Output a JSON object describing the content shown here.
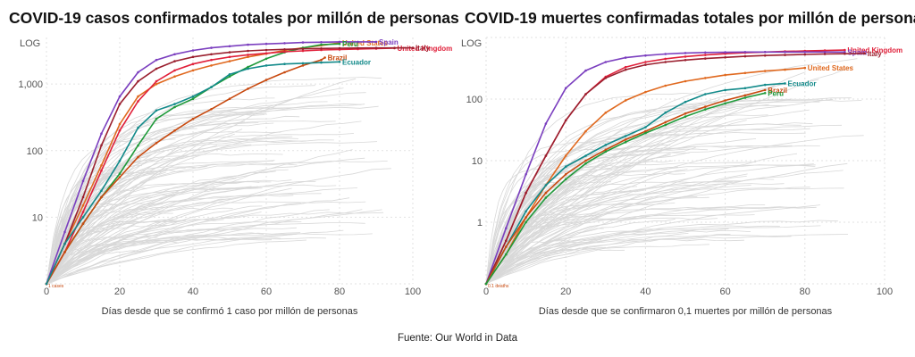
{
  "source": "Fuente: Our World in Data",
  "colors": {
    "United States": "#e0691f",
    "Spain": "#7b3fbf",
    "Peru": "#1f9a3a",
    "United Kingdom": "#e0203a",
    "Italy": "#9a1f2e",
    "Brazil": "#c84a10",
    "Ecuador": "#128a8a",
    "background_lines": "#d8d8d8",
    "grid": "#e2e2e2"
  },
  "chart_data": [
    {
      "type": "line",
      "title": "COVID-19 casos confirmados totales por millón de personas",
      "xlabel": "Días desde que se confirmó 1 caso por millón de personas",
      "ylabel": "LOG",
      "yscale": "log",
      "xlim": [
        0,
        100
      ],
      "ylim": [
        1,
        5000
      ],
      "xticks": [
        "0",
        "20",
        "40",
        "60",
        "80",
        "100"
      ],
      "yticks": [
        "10",
        "100",
        "1,000"
      ],
      "start_note": "1 cases",
      "series": [
        {
          "name": "United States",
          "x": [
            0,
            5,
            10,
            15,
            20,
            25,
            30,
            35,
            40,
            45,
            50,
            55,
            60,
            65,
            70,
            75,
            80
          ],
          "y": [
            1,
            4,
            15,
            60,
            250,
            650,
            1000,
            1300,
            1600,
            1900,
            2200,
            2550,
            2850,
            3200,
            3500,
            3800,
            4150
          ]
        },
        {
          "name": "Spain",
          "x": [
            0,
            5,
            10,
            15,
            20,
            25,
            30,
            35,
            40,
            45,
            50,
            55,
            60,
            65,
            70,
            75,
            80,
            85,
            90
          ],
          "y": [
            1,
            6,
            35,
            180,
            650,
            1500,
            2300,
            2800,
            3200,
            3500,
            3700,
            3900,
            4000,
            4100,
            4200,
            4250,
            4300,
            4300,
            4300
          ]
        },
        {
          "name": "Peru",
          "x": [
            0,
            5,
            10,
            15,
            20,
            25,
            30,
            35,
            40,
            45,
            50,
            55,
            60,
            65,
            70,
            75,
            80
          ],
          "y": [
            1,
            3,
            8,
            20,
            45,
            120,
            300,
            450,
            600,
            900,
            1300,
            1800,
            2400,
            3000,
            3500,
            3900,
            4000
          ]
        },
        {
          "name": "United Kingdom",
          "x": [
            0,
            5,
            10,
            15,
            20,
            25,
            30,
            35,
            40,
            45,
            50,
            55,
            60,
            65,
            70,
            75,
            80,
            85,
            90,
            95
          ],
          "y": [
            1,
            3,
            12,
            50,
            200,
            550,
            1100,
            1600,
            2000,
            2300,
            2550,
            2750,
            2900,
            3050,
            3150,
            3250,
            3300,
            3350,
            3400,
            3450
          ]
        },
        {
          "name": "Italy",
          "x": [
            0,
            5,
            10,
            15,
            20,
            25,
            30,
            35,
            40,
            45,
            50,
            55,
            60,
            65,
            70,
            75,
            80,
            85,
            90,
            95,
            100
          ],
          "y": [
            1,
            4,
            20,
            120,
            500,
            1100,
            1700,
            2200,
            2550,
            2800,
            3000,
            3150,
            3250,
            3320,
            3380,
            3420,
            3450,
            3470,
            3480,
            3490,
            3500
          ]
        },
        {
          "name": "Brazil",
          "x": [
            0,
            5,
            10,
            15,
            20,
            25,
            30,
            35,
            40,
            45,
            50,
            55,
            60,
            65,
            70,
            75,
            76
          ],
          "y": [
            1,
            3,
            8,
            20,
            40,
            80,
            130,
            200,
            300,
            420,
            600,
            850,
            1150,
            1500,
            1900,
            2300,
            2500
          ]
        },
        {
          "name": "Ecuador",
          "x": [
            0,
            5,
            10,
            15,
            20,
            25,
            30,
            35,
            40,
            45,
            50,
            55,
            60,
            65,
            70,
            75,
            80
          ],
          "y": [
            1,
            4,
            10,
            25,
            70,
            220,
            400,
            500,
            650,
            900,
            1400,
            1700,
            1900,
            2000,
            2050,
            2100,
            2150
          ]
        }
      ]
    },
    {
      "type": "line",
      "title": "COVID-19 muertes confirmadas totales por millón de personas",
      "xlabel": "Días desde que se confirmaron 0,1 muertes por millón de personas",
      "ylabel": "LOG",
      "yscale": "log",
      "xlim": [
        0,
        100
      ],
      "ylim": [
        0.1,
        1000
      ],
      "xticks": [
        "0",
        "20",
        "40",
        "60",
        "80",
        "100"
      ],
      "yticks": [
        "1",
        "10",
        "100"
      ],
      "start_note": "0.1 deaths",
      "series": [
        {
          "name": "United Kingdom",
          "x": [
            0,
            5,
            10,
            15,
            20,
            25,
            30,
            35,
            40,
            45,
            50,
            55,
            60,
            65,
            70,
            75,
            80,
            85,
            90
          ],
          "y": [
            0.1,
            0.5,
            3,
            12,
            45,
            120,
            230,
            330,
            400,
            450,
            490,
            520,
            545,
            565,
            580,
            595,
            605,
            615,
            625
          ]
        },
        {
          "name": "Spain",
          "x": [
            0,
            5,
            10,
            15,
            20,
            25,
            30,
            35,
            40,
            45,
            50,
            55,
            60,
            65,
            70,
            75,
            80,
            85,
            90
          ],
          "y": [
            0.1,
            0.8,
            6,
            40,
            150,
            290,
            400,
            470,
            510,
            540,
            560,
            570,
            575,
            580,
            580,
            580,
            580,
            580,
            580
          ]
        },
        {
          "name": "Italy",
          "x": [
            0,
            5,
            10,
            15,
            20,
            25,
            30,
            35,
            40,
            45,
            50,
            55,
            60,
            65,
            70,
            75,
            80,
            85,
            90,
            95
          ],
          "y": [
            0.1,
            0.5,
            3,
            12,
            45,
            120,
            220,
            300,
            360,
            400,
            430,
            455,
            475,
            495,
            510,
            520,
            530,
            540,
            545,
            550
          ]
        },
        {
          "name": "United States",
          "x": [
            0,
            5,
            10,
            15,
            20,
            25,
            30,
            35,
            40,
            45,
            50,
            55,
            60,
            65,
            70,
            75,
            80
          ],
          "y": [
            0.1,
            0.3,
            1.2,
            4,
            12,
            30,
            60,
            95,
            130,
            165,
            195,
            220,
            245,
            265,
            285,
            300,
            320
          ]
        },
        {
          "name": "Ecuador",
          "x": [
            0,
            5,
            10,
            15,
            20,
            25,
            30,
            35,
            40,
            45,
            50,
            55,
            60,
            65,
            70,
            75
          ],
          "y": [
            0.1,
            0.4,
            1.5,
            4,
            8,
            12,
            18,
            25,
            35,
            60,
            90,
            120,
            140,
            150,
            170,
            180
          ]
        },
        {
          "name": "Brazil",
          "x": [
            0,
            5,
            10,
            15,
            20,
            25,
            30,
            35,
            40,
            45,
            50,
            55,
            60,
            65,
            70
          ],
          "y": [
            0.1,
            0.4,
            1.2,
            3,
            6,
            10,
            15,
            22,
            30,
            42,
            58,
            75,
            95,
            115,
            140
          ]
        },
        {
          "name": "Peru",
          "x": [
            0,
            5,
            10,
            15,
            20,
            25,
            30,
            35,
            40,
            45,
            50,
            55,
            60,
            65,
            70
          ],
          "y": [
            0.1,
            0.3,
            1,
            2.5,
            5,
            9,
            14,
            20,
            28,
            38,
            52,
            68,
            85,
            105,
            125
          ]
        }
      ]
    }
  ]
}
